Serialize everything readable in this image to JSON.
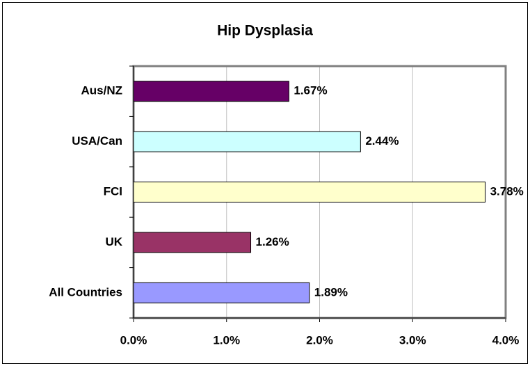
{
  "chart_data": {
    "type": "bar",
    "orientation": "horizontal",
    "title": "Hip Dysplasia",
    "categories": [
      "Aus/NZ",
      "USA/Can",
      "FCI",
      "UK",
      "All Countries"
    ],
    "values": [
      1.67,
      2.44,
      3.78,
      1.26,
      1.89
    ],
    "value_labels": [
      "1.67%",
      "2.44%",
      "3.78%",
      "1.26%",
      "1.89%"
    ],
    "colors": [
      "#660066",
      "#ccffff",
      "#ffffcc",
      "#993366",
      "#9999ff"
    ],
    "xlim": [
      0,
      4
    ],
    "xticks": [
      {
        "value": 0,
        "label": "0.0%"
      },
      {
        "value": 1,
        "label": "1.0%"
      },
      {
        "value": 2,
        "label": "2.0%"
      },
      {
        "value": 3,
        "label": "3.0%"
      },
      {
        "value": 4,
        "label": "4.0%"
      }
    ],
    "grid": true
  }
}
